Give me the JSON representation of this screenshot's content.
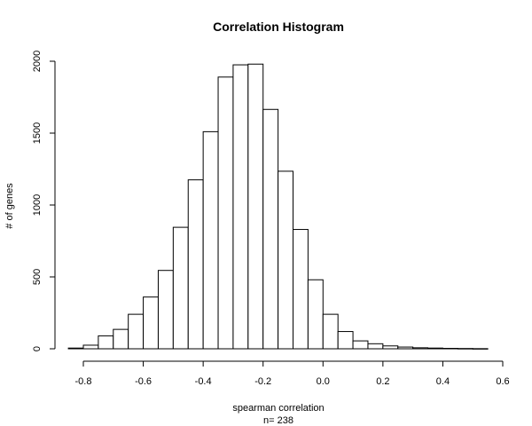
{
  "chart_data": {
    "type": "bar",
    "title": "Correlation Histogram",
    "xlabel": "spearman correlation",
    "xlabel_sub": "n= 238",
    "ylabel": "# of genes",
    "bin_width": 0.05,
    "bin_starts": [
      -0.85,
      -0.8,
      -0.75,
      -0.7,
      -0.65,
      -0.6,
      -0.55,
      -0.5,
      -0.45,
      -0.4,
      -0.35,
      -0.3,
      -0.25,
      -0.2,
      -0.15,
      -0.1,
      -0.05,
      0.0,
      0.05,
      0.1,
      0.15,
      0.2,
      0.25,
      0.3,
      0.35,
      0.4,
      0.45,
      0.5
    ],
    "values": [
      5,
      25,
      90,
      135,
      240,
      360,
      545,
      845,
      1175,
      1510,
      1890,
      1975,
      1980,
      1665,
      1235,
      830,
      480,
      240,
      120,
      55,
      35,
      20,
      12,
      7,
      5,
      3,
      2,
      1
    ],
    "xlim": [
      -0.85,
      0.55
    ],
    "ylim": [
      0,
      2000
    ],
    "x_ticks": [
      -0.8,
      -0.6,
      -0.4,
      -0.2,
      0.0,
      0.2,
      0.4,
      0.6
    ],
    "x_tick_labels": [
      "-0.8",
      "-0.6",
      "-0.4",
      "-0.2",
      "0.0",
      "0.2",
      "0.4",
      "0.6"
    ],
    "y_ticks": [
      0,
      500,
      1000,
      1500,
      2000
    ],
    "y_tick_labels": [
      "0",
      "500",
      "1000",
      "1500",
      "2000"
    ],
    "grid": false,
    "legend": "none"
  }
}
